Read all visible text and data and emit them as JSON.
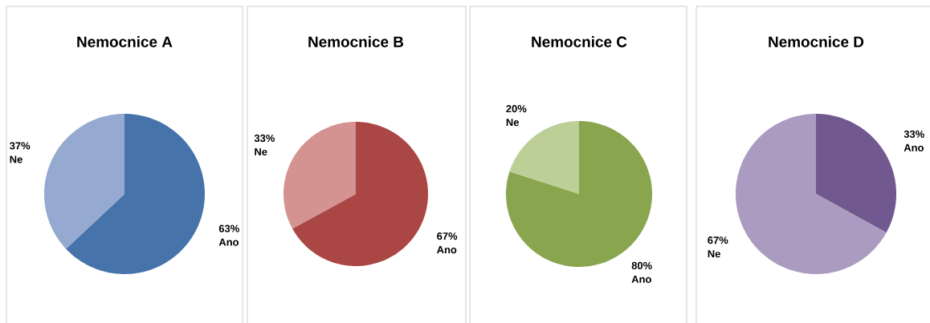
{
  "chart_data": [
    {
      "type": "pie",
      "title": "Nemocnice A",
      "categories": [
        "Ano",
        "Ne"
      ],
      "values": [
        63,
        37
      ],
      "colors": [
        "#4674aa",
        "#95a9d1"
      ],
      "value_labels": [
        "63%",
        "37%"
      ]
    },
    {
      "type": "pie",
      "title": "Nemocnice B",
      "categories": [
        "Ano",
        "Ne"
      ],
      "values": [
        67,
        33
      ],
      "colors": [
        "#aa4644",
        "#d49290"
      ],
      "value_labels": [
        "67%",
        "33%"
      ]
    },
    {
      "type": "pie",
      "title": "Nemocnice C",
      "categories": [
        "Ano",
        "Ne"
      ],
      "values": [
        80,
        20
      ],
      "colors": [
        "#89a54e",
        "#bbcf97"
      ],
      "value_labels": [
        "80%",
        "20%"
      ]
    },
    {
      "type": "pie",
      "title": "Nemocnice D",
      "categories": [
        "Ano",
        "Ne"
      ],
      "values": [
        33,
        67
      ],
      "colors": [
        "#71588f",
        "#ab9bc0"
      ],
      "value_labels": [
        "33%",
        "67%"
      ]
    }
  ]
}
